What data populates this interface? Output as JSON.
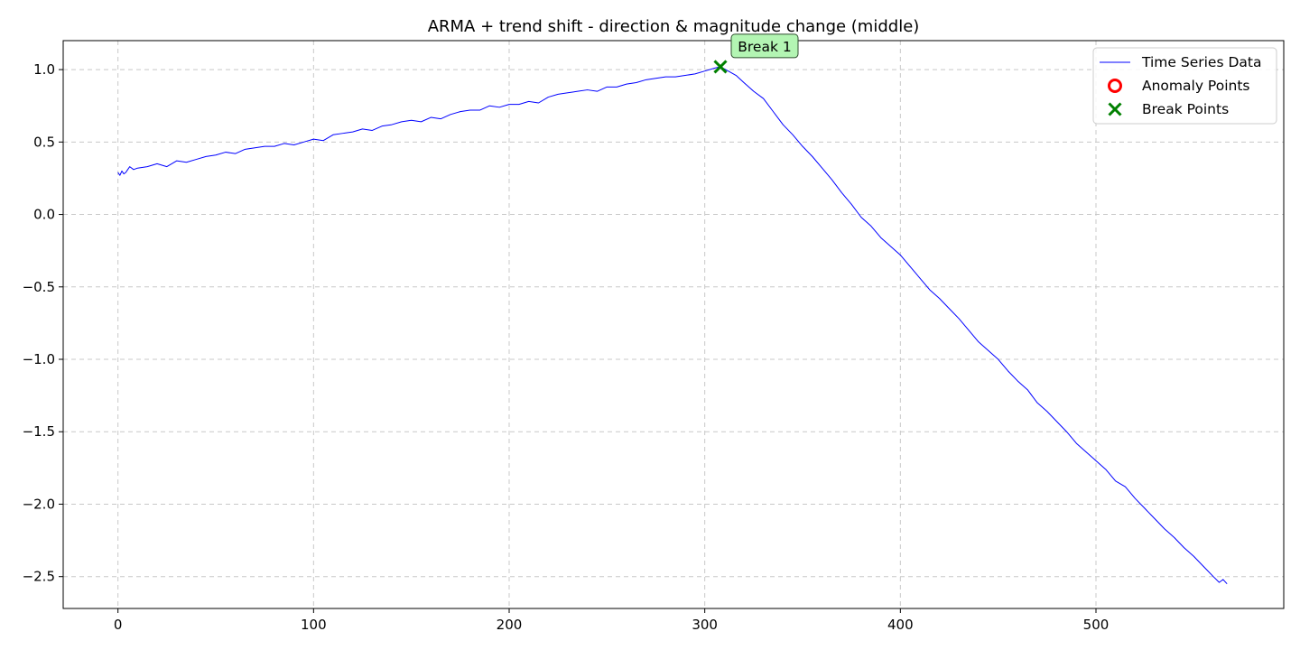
{
  "chart_data": {
    "type": "line",
    "title": "ARMA + trend shift - direction & magnitude change (middle)",
    "xlabel": "",
    "ylabel": "",
    "xlim": [
      -28,
      596
    ],
    "ylim": [
      -2.72,
      1.2
    ],
    "x_ticks": [
      0,
      100,
      200,
      300,
      400,
      500
    ],
    "x_tick_labels": [
      "0",
      "100",
      "200",
      "300",
      "400",
      "500"
    ],
    "y_ticks": [
      1.0,
      0.5,
      0.0,
      -0.5,
      -1.0,
      -1.5,
      -2.0,
      -2.5
    ],
    "y_tick_labels": [
      "1.0",
      "0.5",
      "0.0",
      "−0.5",
      "−1.0",
      "−1.5",
      "−2.0",
      "−2.5"
    ],
    "grid": true,
    "legend_position": "top-right",
    "series": [
      {
        "name": "Time Series Data",
        "color": "#0000ff",
        "x": [
          0,
          1,
          2,
          3,
          4,
          5,
          6,
          8,
          10,
          15,
          20,
          25,
          30,
          35,
          40,
          45,
          50,
          55,
          60,
          65,
          70,
          75,
          80,
          85,
          90,
          95,
          100,
          105,
          110,
          115,
          120,
          125,
          130,
          135,
          140,
          145,
          150,
          155,
          160,
          165,
          170,
          175,
          180,
          185,
          190,
          195,
          200,
          205,
          210,
          215,
          220,
          225,
          230,
          235,
          240,
          245,
          250,
          255,
          260,
          265,
          270,
          275,
          280,
          285,
          290,
          295,
          300,
          305,
          308,
          312,
          316,
          320,
          325,
          330,
          335,
          340,
          345,
          350,
          355,
          360,
          365,
          370,
          375,
          380,
          385,
          390,
          395,
          400,
          405,
          410,
          415,
          420,
          425,
          430,
          435,
          440,
          445,
          450,
          455,
          460,
          465,
          470,
          475,
          480,
          485,
          490,
          495,
          500,
          505,
          510,
          515,
          520,
          525,
          530,
          535,
          540,
          545,
          550,
          555,
          560,
          563,
          565,
          567
        ],
        "values": [
          0.29,
          0.27,
          0.3,
          0.28,
          0.29,
          0.31,
          0.33,
          0.31,
          0.32,
          0.33,
          0.35,
          0.33,
          0.37,
          0.36,
          0.38,
          0.4,
          0.41,
          0.43,
          0.42,
          0.45,
          0.46,
          0.47,
          0.47,
          0.49,
          0.48,
          0.5,
          0.52,
          0.51,
          0.55,
          0.56,
          0.57,
          0.59,
          0.58,
          0.61,
          0.62,
          0.64,
          0.65,
          0.64,
          0.67,
          0.66,
          0.69,
          0.71,
          0.72,
          0.72,
          0.75,
          0.74,
          0.76,
          0.76,
          0.78,
          0.77,
          0.81,
          0.83,
          0.84,
          0.85,
          0.86,
          0.85,
          0.88,
          0.88,
          0.9,
          0.91,
          0.93,
          0.94,
          0.95,
          0.95,
          0.96,
          0.97,
          0.99,
          1.01,
          1.02,
          0.99,
          0.96,
          0.91,
          0.85,
          0.8,
          0.71,
          0.62,
          0.55,
          0.47,
          0.4,
          0.32,
          0.24,
          0.15,
          0.07,
          -0.02,
          -0.08,
          -0.16,
          -0.22,
          -0.28,
          -0.36,
          -0.44,
          -0.52,
          -0.58,
          -0.65,
          -0.72,
          -0.8,
          -0.88,
          -0.94,
          -1.0,
          -1.08,
          -1.15,
          -1.21,
          -1.3,
          -1.36,
          -1.43,
          -1.5,
          -1.58,
          -1.64,
          -1.7,
          -1.76,
          -1.84,
          -1.88,
          -1.96,
          -2.03,
          -2.1,
          -2.17,
          -2.23,
          -2.3,
          -2.36,
          -2.43,
          -2.5,
          -2.54,
          -2.52,
          -2.55
        ]
      },
      {
        "name": "Anomaly Points",
        "color": "#ff0000",
        "marker": "o",
        "x": [],
        "values": []
      },
      {
        "name": "Break Points",
        "color": "#008000",
        "marker": "x",
        "x": [
          308
        ],
        "values": [
          1.02
        ]
      }
    ],
    "annotations": [
      {
        "text": "Break 1",
        "x": 308,
        "y": 1.02,
        "box_color": "#b3f5b3"
      }
    ]
  }
}
